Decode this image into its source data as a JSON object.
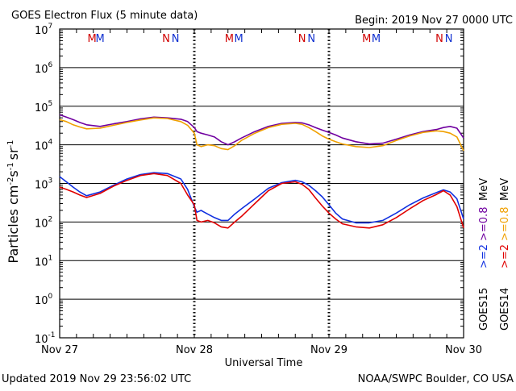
{
  "header": {
    "title": "GOES Electron Flux (5 minute data)",
    "begin": "Begin: 2019 Nov 27 0000 UTC"
  },
  "footer": {
    "updated": "Updated 2019 Nov 29 23:56:02 UTC",
    "credit": "NOAA/SWPC Boulder, CO USA"
  },
  "chart_data": {
    "type": "line",
    "title": "GOES Electron Flux (5 minute data)",
    "xlabel": "Universal Time",
    "ylabel": "Particles cm-2s-1sr-1",
    "ylabel_parts": {
      "main": "Particles cm",
      "e1": "-2",
      "mid": "s",
      "e2": "-1",
      "sr": "sr",
      "e3": "-1"
    },
    "yscale": "log",
    "ylim": [
      0.1,
      10000000
    ],
    "y_ticks": [
      {
        "base": "10",
        "exp": "-1",
        "value": 0.1
      },
      {
        "base": "10",
        "exp": "0",
        "value": 1
      },
      {
        "base": "10",
        "exp": "1",
        "value": 10
      },
      {
        "base": "10",
        "exp": "2",
        "value": 100
      },
      {
        "base": "10",
        "exp": "3",
        "value": 1000
      },
      {
        "base": "10",
        "exp": "4",
        "value": 10000
      },
      {
        "base": "10",
        "exp": "5",
        "value": 100000
      },
      {
        "base": "10",
        "exp": "6",
        "value": 1000000
      },
      {
        "base": "10",
        "exp": "7",
        "value": 10000000
      }
    ],
    "x_ticks": [
      "Nov 27",
      "Nov 28",
      "Nov 29",
      "Nov 30"
    ],
    "xlim_days": [
      0,
      3
    ],
    "threshold_line": 1000,
    "grid": true,
    "midnight_markers": [
      {
        "label": "M",
        "day": 0.24,
        "color": "#d00000"
      },
      {
        "label": "M",
        "day": 0.3,
        "color": "#1030d0"
      },
      {
        "label": "N",
        "day": 0.79,
        "color": "#d00000"
      },
      {
        "label": "N",
        "day": 0.86,
        "color": "#1030d0"
      },
      {
        "label": "M",
        "day": 1.26,
        "color": "#d00000"
      },
      {
        "label": "M",
        "day": 1.33,
        "color": "#1030d0"
      },
      {
        "label": "N",
        "day": 1.8,
        "color": "#d00000"
      },
      {
        "label": "N",
        "day": 1.87,
        "color": "#1030d0"
      },
      {
        "label": "M",
        "day": 2.28,
        "color": "#d00000"
      },
      {
        "label": "M",
        "day": 2.35,
        "color": "#1030d0"
      },
      {
        "label": "N",
        "day": 2.82,
        "color": "#d00000"
      },
      {
        "label": "N",
        "day": 2.89,
        "color": "#1030d0"
      }
    ],
    "legend_placement": "right",
    "legend_columns": [
      {
        "satellite": "GOES14",
        "items": [
          {
            "text": ">=2",
            "color": "#e00000"
          },
          {
            "text": ">=0.8",
            "color": "#f0a000"
          },
          {
            "text": "MeV",
            "color": "#000000"
          }
        ]
      },
      {
        "satellite": "GOES15",
        "items": [
          {
            "text": ">=2",
            "color": "#1030e0"
          },
          {
            "text": ">=0.8",
            "color": "#7000a0"
          },
          {
            "text": "MeV",
            "color": "#000000"
          }
        ]
      }
    ],
    "series": [
      {
        "name": "GOES15 >=0.8 MeV",
        "color": "#7000a0",
        "x": [
          0,
          0.05,
          0.1,
          0.15,
          0.2,
          0.3,
          0.4,
          0.5,
          0.6,
          0.7,
          0.8,
          0.9,
          0.95,
          1.0,
          1.02,
          1.05,
          1.1,
          1.15,
          1.2,
          1.25,
          1.3,
          1.35,
          1.45,
          1.55,
          1.65,
          1.75,
          1.8,
          1.85,
          1.9,
          1.95,
          2.0,
          2.05,
          2.1,
          2.2,
          2.3,
          2.4,
          2.5,
          2.6,
          2.7,
          2.8,
          2.85,
          2.9,
          2.95,
          3.0
        ],
        "values": [
          60000,
          52000,
          45000,
          38000,
          33000,
          30000,
          35000,
          40000,
          47000,
          52000,
          50000,
          46000,
          40000,
          28000,
          22000,
          20000,
          18000,
          16000,
          12000,
          10000,
          12000,
          15000,
          22000,
          30000,
          36000,
          38000,
          37000,
          33000,
          28000,
          24000,
          21000,
          18000,
          15000,
          12000,
          10500,
          11000,
          14000,
          18000,
          22000,
          25000,
          28000,
          30000,
          27000,
          15000
        ]
      },
      {
        "name": "GOES14 >=0.8 MeV",
        "color": "#f0a000",
        "x": [
          0,
          0.05,
          0.1,
          0.15,
          0.2,
          0.3,
          0.4,
          0.5,
          0.6,
          0.7,
          0.8,
          0.9,
          0.95,
          1.0,
          1.02,
          1.05,
          1.1,
          1.15,
          1.2,
          1.25,
          1.3,
          1.35,
          1.45,
          1.55,
          1.65,
          1.75,
          1.8,
          1.85,
          1.9,
          1.95,
          2.0,
          2.05,
          2.1,
          2.2,
          2.3,
          2.4,
          2.5,
          2.6,
          2.7,
          2.8,
          2.85,
          2.9,
          2.95,
          3.0
        ],
        "values": [
          45000,
          40000,
          33000,
          29000,
          26000,
          27000,
          32000,
          38000,
          44000,
          50000,
          48000,
          40000,
          32000,
          20000,
          10000,
          9000,
          10000,
          9500,
          8000,
          7500,
          9500,
          13000,
          20000,
          28000,
          34000,
          36000,
          34000,
          28000,
          22000,
          17000,
          14000,
          12000,
          10500,
          9000,
          8500,
          9500,
          13000,
          17000,
          21000,
          23000,
          22000,
          20000,
          16000,
          7000
        ]
      },
      {
        "name": "GOES15 >=2 MeV",
        "color": "#1030e0",
        "x": [
          0,
          0.05,
          0.1,
          0.15,
          0.2,
          0.3,
          0.4,
          0.5,
          0.6,
          0.7,
          0.8,
          0.9,
          0.95,
          1.0,
          1.02,
          1.05,
          1.1,
          1.15,
          1.2,
          1.25,
          1.3,
          1.35,
          1.45,
          1.55,
          1.65,
          1.75,
          1.8,
          1.85,
          1.9,
          1.95,
          2.0,
          2.05,
          2.1,
          2.2,
          2.3,
          2.4,
          2.5,
          2.6,
          2.7,
          2.8,
          2.85,
          2.9,
          2.95,
          3.0
        ],
        "values": [
          1500,
          1100,
          800,
          600,
          480,
          600,
          900,
          1300,
          1700,
          1900,
          1800,
          1300,
          700,
          250,
          180,
          200,
          160,
          130,
          110,
          110,
          160,
          220,
          400,
          750,
          1050,
          1200,
          1100,
          900,
          650,
          450,
          280,
          170,
          120,
          95,
          95,
          110,
          170,
          280,
          420,
          580,
          680,
          600,
          400,
          120
        ]
      },
      {
        "name": "GOES14 >=2 MeV",
        "color": "#e00000",
        "x": [
          0,
          0.05,
          0.1,
          0.15,
          0.2,
          0.3,
          0.4,
          0.5,
          0.6,
          0.7,
          0.8,
          0.9,
          0.95,
          1.0,
          1.02,
          1.05,
          1.1,
          1.15,
          1.2,
          1.25,
          1.3,
          1.35,
          1.45,
          1.55,
          1.65,
          1.75,
          1.8,
          1.85,
          1.9,
          1.95,
          2.0,
          2.05,
          2.1,
          2.2,
          2.3,
          2.4,
          2.5,
          2.6,
          2.7,
          2.8,
          2.85,
          2.9,
          2.95,
          3.0
        ],
        "values": [
          800,
          700,
          600,
          500,
          430,
          550,
          850,
          1200,
          1600,
          1800,
          1600,
          1000,
          500,
          280,
          110,
          100,
          110,
          95,
          75,
          70,
          100,
          140,
          300,
          650,
          1000,
          1100,
          950,
          700,
          420,
          260,
          170,
          120,
          90,
          75,
          70,
          85,
          130,
          220,
          360,
          520,
          650,
          500,
          250,
          70
        ]
      }
    ]
  }
}
